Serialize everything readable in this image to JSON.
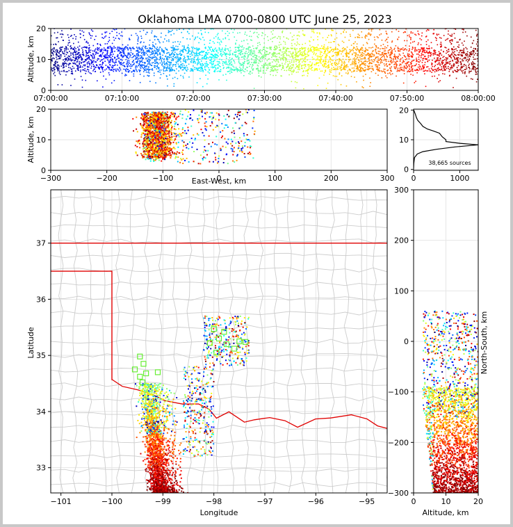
{
  "chart_data": {
    "type": "scatter",
    "title": "Oklahoma LMA 0700-0800 UTC June 25, 2023",
    "colormap": "jet, by time",
    "panels": {
      "time_altitude": {
        "ylabel": "Altitude, km",
        "xlabel": "",
        "ylim": [
          0,
          20
        ],
        "yticks": [
          "0",
          "10",
          "20"
        ],
        "xticks": [
          "07:00:00",
          "07:10:00",
          "07:20:00",
          "07:30:00",
          "07:40:00",
          "07:50:00",
          "08:00:00"
        ]
      },
      "ew_altitude": {
        "ylabel": "Altitude, km",
        "xlabel": "East-West, km",
        "xlim": [
          -300,
          300
        ],
        "ylim": [
          0,
          20
        ],
        "xticks": [
          "−300",
          "−200",
          "−100",
          "0",
          "100",
          "200",
          "300"
        ],
        "yticks": [
          "0",
          "10",
          "20"
        ]
      },
      "histogram": {
        "ylim": [
          0,
          20
        ],
        "xlim": [
          0,
          1400
        ],
        "xticks": [
          "0",
          "1000"
        ],
        "yticks": [
          "0",
          "10",
          "20"
        ],
        "annotation": "38,665 sources",
        "profile": [
          [
            0,
            0.3
          ],
          [
            5,
            2
          ],
          [
            20,
            4
          ],
          [
            80,
            5.2
          ],
          [
            200,
            6
          ],
          [
            500,
            6.8
          ],
          [
            900,
            7.6
          ],
          [
            1400,
            8.3
          ],
          [
            1000,
            8.8
          ],
          [
            700,
            9.4
          ],
          [
            700,
            10
          ],
          [
            620,
            11
          ],
          [
            560,
            12.2
          ],
          [
            420,
            13
          ],
          [
            300,
            13.6
          ],
          [
            200,
            14.5
          ],
          [
            150,
            15.5
          ],
          [
            90,
            16.5
          ],
          [
            60,
            17.5
          ],
          [
            40,
            18.5
          ],
          [
            15,
            19.5
          ],
          [
            5,
            20
          ]
        ]
      },
      "map": {
        "xlabel": "Longitude",
        "ylabel": "Latitude",
        "xlim": [
          -101.2,
          -94.6
        ],
        "ylim": [
          32.55,
          37.95
        ],
        "xticks": [
          "−101",
          "−100",
          "−99",
          "−98",
          "−97",
          "−96",
          "−95"
        ],
        "yticks": [
          "33",
          "34",
          "35",
          "36",
          "37"
        ],
        "stations": [
          [
            -99.45,
            34.98
          ],
          [
            -99.38,
            34.85
          ],
          [
            -99.55,
            34.75
          ],
          [
            -99.33,
            34.68
          ],
          [
            -99.45,
            34.62
          ],
          [
            -99.4,
            34.52
          ],
          [
            -99.1,
            34.7
          ],
          [
            -98.0,
            35.47
          ],
          [
            -97.8,
            35.42
          ],
          [
            -97.9,
            35.3
          ],
          [
            -98.08,
            35.22
          ],
          [
            -97.75,
            35.2
          ],
          [
            -97.5,
            35.25
          ],
          [
            -97.6,
            35.12
          ],
          [
            -97.95,
            35.05
          ],
          [
            -97.38,
            35.24
          ]
        ]
      },
      "alt_ns": {
        "xlabel": "Altitude, km",
        "ylabel": "North-South, km",
        "xlim": [
          0,
          20
        ],
        "ylim": [
          -300,
          300
        ],
        "xticks": [
          "0",
          "10",
          "20"
        ],
        "yticks": [
          "−300",
          "−200",
          "−100",
          "0",
          "100",
          "200",
          "300"
        ]
      }
    }
  }
}
